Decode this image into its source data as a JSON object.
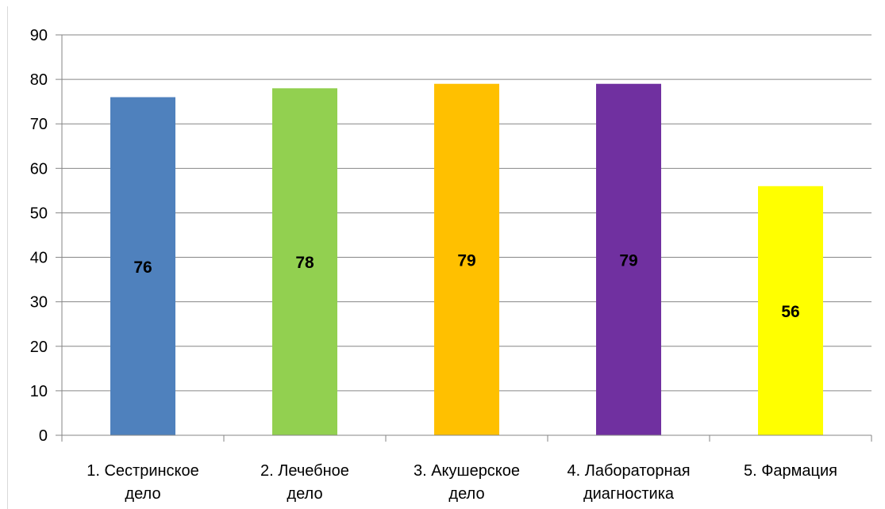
{
  "chart_data": {
    "type": "bar",
    "title": "",
    "xlabel": "",
    "ylabel": "",
    "categories": [
      [
        "1. Сестринское",
        "дело"
      ],
      [
        "2. Лечебное",
        "дело"
      ],
      [
        "3. Акушерское",
        "дело"
      ],
      [
        "4. Лабораторная",
        "диагностика"
      ],
      [
        "5. Фармация"
      ]
    ],
    "values": [
      76,
      78,
      79,
      79,
      56
    ],
    "colors": [
      "#4f81bd",
      "#92d050",
      "#ffc000",
      "#7030a0",
      "#ffff00"
    ],
    "data_labels": [
      "76",
      "78",
      "79",
      "79",
      "56"
    ],
    "ylim": [
      0,
      90
    ],
    "yticks": [
      0,
      10,
      20,
      30,
      40,
      50,
      60,
      70,
      80,
      90
    ],
    "grid": true,
    "legend": "none"
  }
}
